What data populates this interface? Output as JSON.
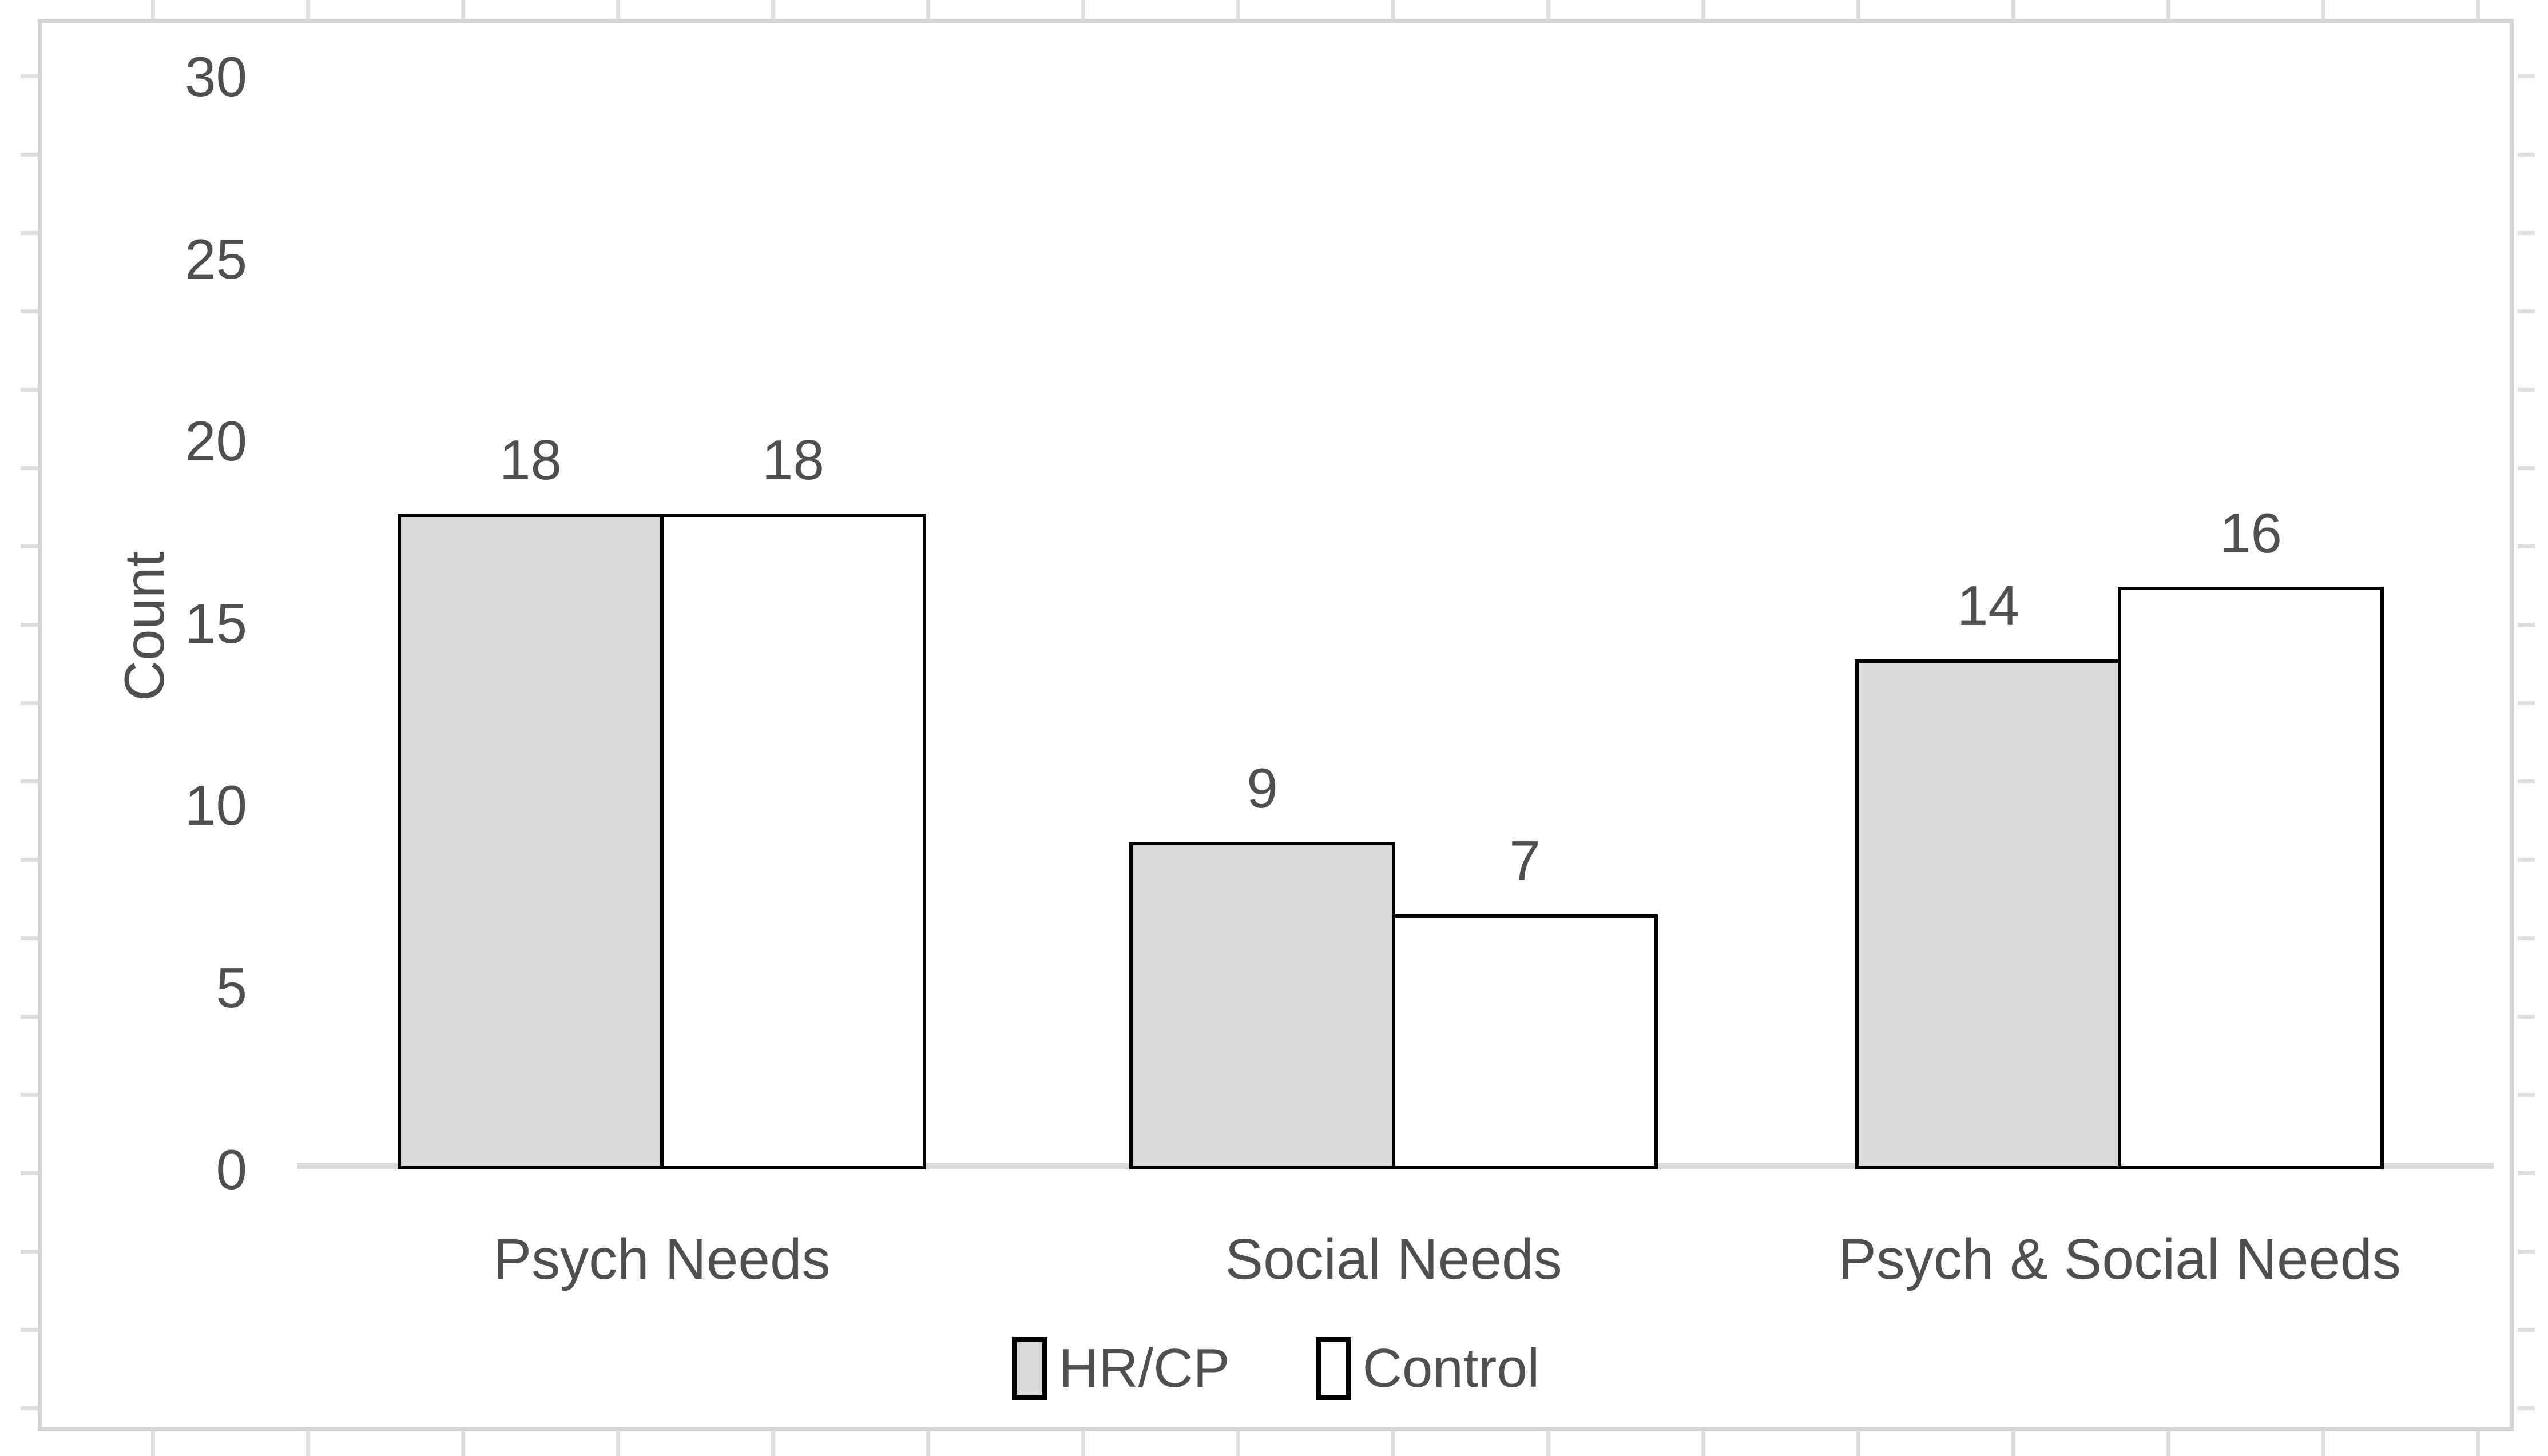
{
  "chart_data": {
    "type": "bar",
    "title": "",
    "categories": [
      "Psych Needs",
      "Social Needs",
      "Psych & Social Needs"
    ],
    "series": [
      {
        "name": "HR/CP",
        "values": [
          18,
          9,
          14
        ],
        "fill": "#d9d9d9"
      },
      {
        "name": "Control",
        "values": [
          18,
          7,
          16
        ],
        "fill": "#ffffff"
      }
    ],
    "data_labels": {
      "HR/CP": [
        "18",
        "9",
        "14"
      ],
      "Control": [
        "18",
        "7",
        "16"
      ]
    },
    "xlabel": "",
    "ylabel": "Count",
    "ylim": [
      0,
      30
    ],
    "yticks": [
      "0",
      "5",
      "10",
      "15",
      "20",
      "25",
      "30"
    ],
    "grid": false,
    "legend_position": "bottom",
    "bar_border_color": "#000000",
    "axis_line_color": "#d9d9d9",
    "text_color": "#4f4f4f"
  },
  "legend": {
    "items": [
      {
        "label": "HR/CP",
        "fill": "#d9d9d9"
      },
      {
        "label": "Control",
        "fill": "#ffffff"
      }
    ]
  }
}
